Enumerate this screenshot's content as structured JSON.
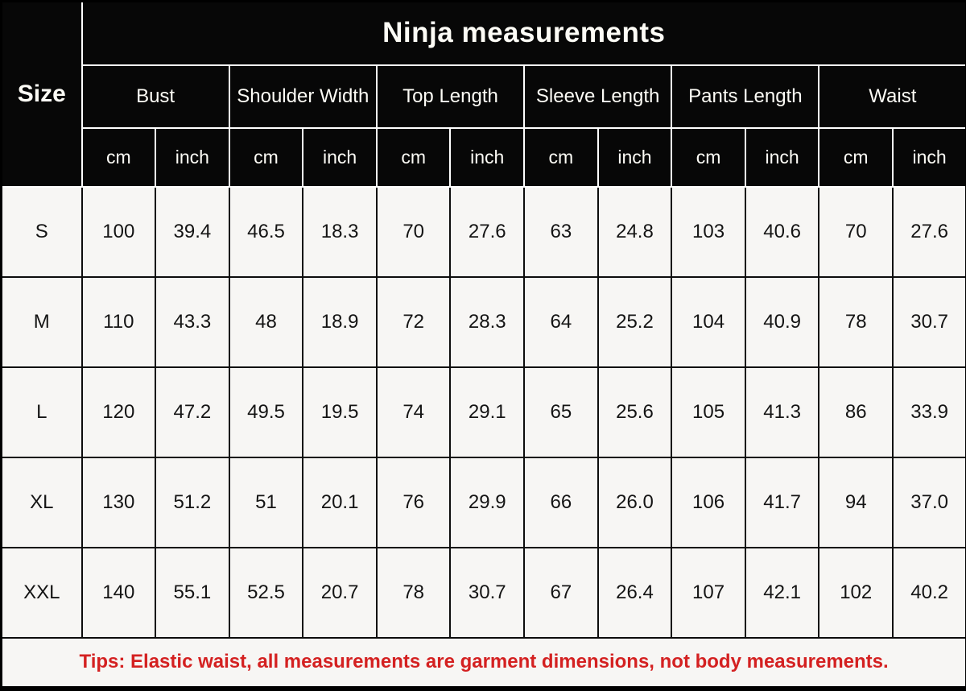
{
  "colors": {
    "header_bg": "#070707",
    "header_text": "#fdfcf6",
    "cell_bg": "#f7f6f4",
    "grid_dark": "#0d0d0d",
    "grid_light": "#ffffff",
    "tip_text": "#d42121"
  },
  "chart_data": {
    "type": "table",
    "title": "Ninja measurements",
    "corner_label": "Size",
    "column_groups": [
      "Bust",
      "Shoulder Width",
      "Top Length",
      "Sleeve Length",
      "Pants Length",
      "Waist"
    ],
    "unit_row": [
      "cm",
      "inch",
      "cm",
      "inch",
      "cm",
      "inch",
      "cm",
      "inch",
      "cm",
      "inch",
      "cm",
      "inch"
    ],
    "rows": [
      {
        "size": "S",
        "values": [
          "100",
          "39.4",
          "46.5",
          "18.3",
          "70",
          "27.6",
          "63",
          "24.8",
          "103",
          "40.6",
          "70",
          "27.6"
        ]
      },
      {
        "size": "M",
        "values": [
          "110",
          "43.3",
          "48",
          "18.9",
          "72",
          "28.3",
          "64",
          "25.2",
          "104",
          "40.9",
          "78",
          "30.7"
        ]
      },
      {
        "size": "L",
        "values": [
          "120",
          "47.2",
          "49.5",
          "19.5",
          "74",
          "29.1",
          "65",
          "25.6",
          "105",
          "41.3",
          "86",
          "33.9"
        ]
      },
      {
        "size": "XL",
        "values": [
          "130",
          "51.2",
          "51",
          "20.1",
          "76",
          "29.9",
          "66",
          "26.0",
          "106",
          "41.7",
          "94",
          "37.0"
        ]
      },
      {
        "size": "XXL",
        "values": [
          "140",
          "55.1",
          "52.5",
          "20.7",
          "78",
          "30.7",
          "67",
          "26.4",
          "107",
          "42.1",
          "102",
          "40.2"
        ]
      }
    ],
    "footnote": "Tips: Elastic waist, all measurements are garment dimensions, not body measurements."
  }
}
